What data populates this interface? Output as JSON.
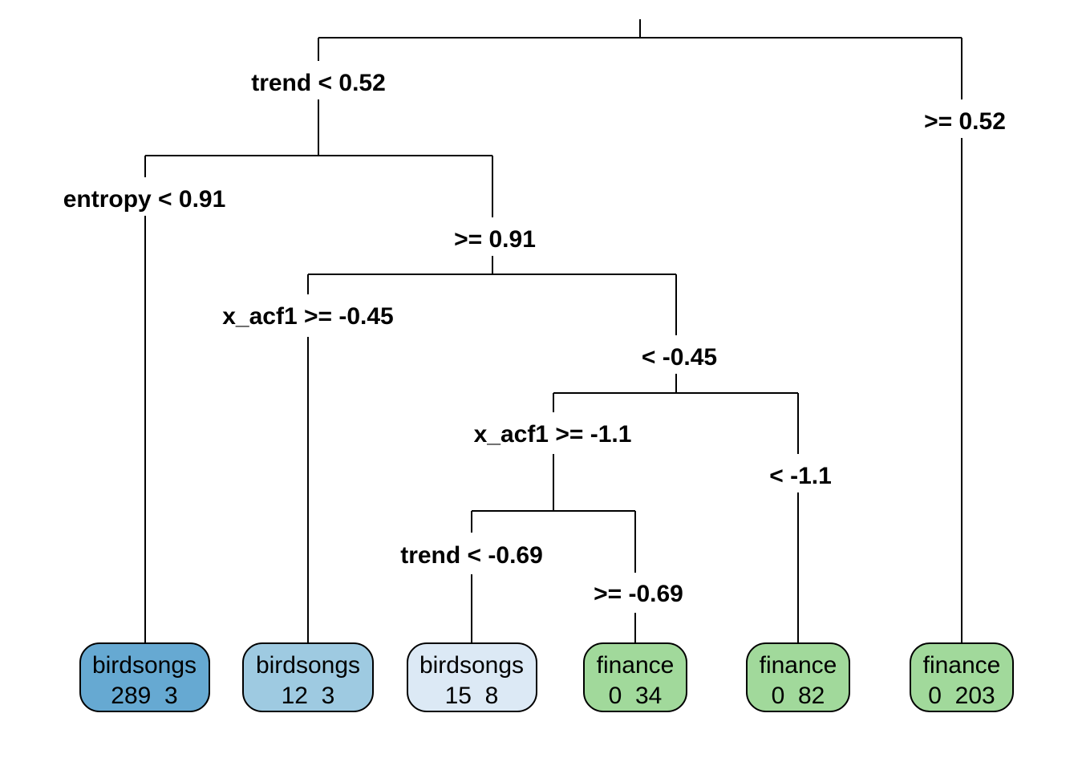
{
  "splits": [
    {
      "label": "trend < 0.52"
    },
    {
      "label": ">= 0.52"
    },
    {
      "label": "entropy < 0.91"
    },
    {
      "label": ">= 0.91"
    },
    {
      "label": "x_acf1 >= -0.45"
    },
    {
      "label": "< -0.45"
    },
    {
      "label": "x_acf1 >= -1.1"
    },
    {
      "label": "< -1.1"
    },
    {
      "label": "trend < -0.69"
    },
    {
      "label": ">= -0.69"
    }
  ],
  "leaves": [
    {
      "class": "birdsongs",
      "counts": "289  3",
      "color": "#66a9d2"
    },
    {
      "class": "birdsongs",
      "counts": "12  3",
      "color": "#9ecae1"
    },
    {
      "class": "birdsongs",
      "counts": "15  8",
      "color": "#dce9f5"
    },
    {
      "class": "finance",
      "counts": "0  34",
      "color": "#a1d99b"
    },
    {
      "class": "finance",
      "counts": "0  82",
      "color": "#a1d99b"
    },
    {
      "class": "finance",
      "counts": "0  203",
      "color": "#a1d99b"
    }
  ]
}
